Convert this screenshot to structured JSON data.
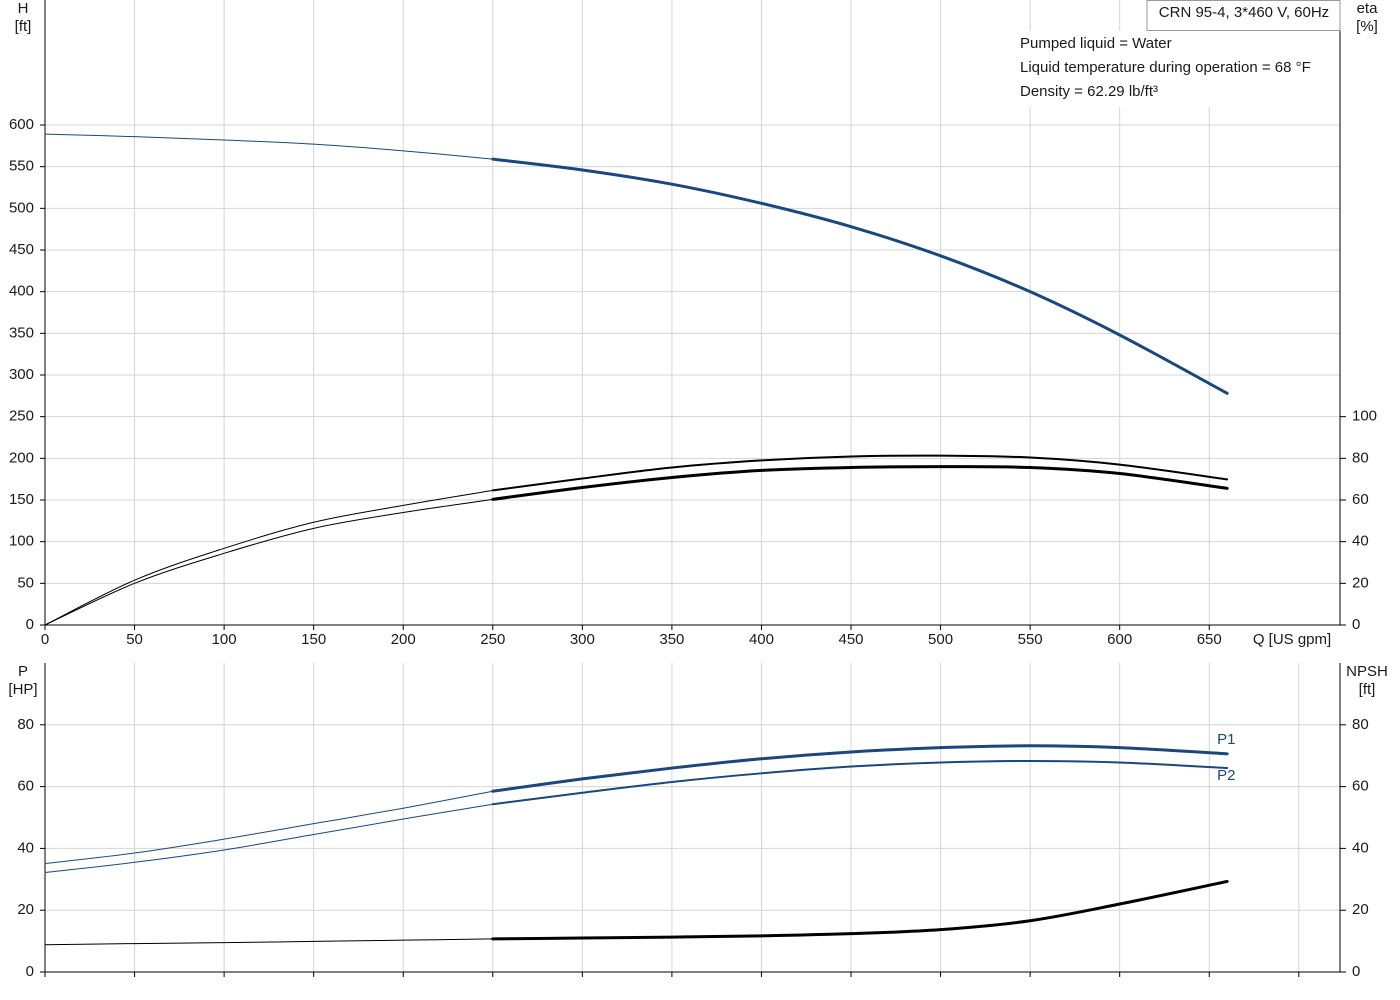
{
  "chart_data": [
    {
      "type": "line",
      "title": "CRN 95-4, 3*460 V, 60Hz",
      "annotations": [
        "Pumped liquid = Water",
        "Liquid temperature during operation = 68 °F",
        "Density = 62.29 lb/ft³"
      ],
      "xlabel": "Q [US gpm]",
      "ylabel": "H",
      "yunit": "[ft]",
      "y2label": "eta",
      "y2unit": "[%]",
      "x": [
        0,
        50,
        100,
        150,
        200,
        250,
        300,
        350,
        400,
        450,
        500,
        550,
        600,
        660
      ],
      "xlim": [
        0,
        723
      ],
      "xticks": [
        0,
        50,
        100,
        150,
        200,
        250,
        300,
        350,
        400,
        450,
        500,
        550,
        600,
        650
      ],
      "show_xtick_labels": true,
      "ylim": [
        0,
        750
      ],
      "yticks": [
        0,
        50,
        100,
        150,
        200,
        250,
        300,
        350,
        400,
        450,
        500,
        550,
        600
      ],
      "y2lim": [
        0,
        300
      ],
      "y2ticks": [
        0,
        20,
        40,
        60,
        80,
        100
      ],
      "grid": true,
      "operating_range": [
        250,
        660
      ],
      "series": [
        {
          "color": "#19477e",
          "weight": "heavy",
          "values": [
            589,
            586,
            582,
            577,
            569,
            559,
            546,
            529,
            506,
            478,
            443,
            400,
            348,
            278
          ]
        },
        {
          "axis": "y2",
          "color": "#000000",
          "weight": "medium",
          "values": [
            0,
            21.5,
            36.8,
            49.3,
            57.4,
            64.6,
            70.3,
            75.6,
            79,
            80.9,
            81.3,
            80.4,
            77,
            69.9
          ]
        },
        {
          "axis": "y2",
          "color": "#000000",
          "weight": "heavy",
          "values": [
            0,
            20,
            34.4,
            46.4,
            54,
            60.3,
            66,
            70.8,
            74.2,
            75.6,
            76,
            75.6,
            72.7,
            65.6
          ]
        }
      ]
    },
    {
      "type": "line",
      "ylabel": "P",
      "yunit": "[HP]",
      "y2label": "NPSH",
      "y2unit": "[ft]",
      "x": [
        0,
        50,
        100,
        150,
        200,
        250,
        300,
        350,
        400,
        450,
        500,
        550,
        600,
        660
      ],
      "xlim": [
        0,
        723
      ],
      "xticks": [
        0,
        50,
        100,
        150,
        200,
        250,
        300,
        350,
        400,
        450,
        500,
        550,
        600,
        650,
        700
      ],
      "show_xtick_labels": false,
      "ylim": [
        0,
        100
      ],
      "yticks": [
        0,
        20,
        40,
        60,
        80
      ],
      "y2lim": [
        0,
        100
      ],
      "y2ticks": [
        0,
        20,
        40,
        60,
        80
      ],
      "grid": true,
      "operating_range": [
        250,
        660
      ],
      "series": [
        {
          "name": "P1",
          "color": "#19477e",
          "weight": "heavy",
          "label_side": "above",
          "values": [
            35.1,
            38.5,
            43,
            48,
            53,
            58.5,
            62.5,
            66,
            69,
            71.2,
            72.6,
            73.2,
            72.6,
            70.6
          ]
        },
        {
          "name": "P2",
          "color": "#19477e",
          "weight": "medium",
          "label_side": "below",
          "values": [
            32.2,
            35.5,
            39.5,
            44.5,
            49.5,
            54.3,
            58,
            61.5,
            64.3,
            66.5,
            67.8,
            68.3,
            67.8,
            66
          ]
        },
        {
          "axis": "y2",
          "color": "#000000",
          "weight": "heavy",
          "values": [
            8.8,
            9.2,
            9.5,
            9.9,
            10.3,
            10.7,
            11,
            11.3,
            11.7,
            12.4,
            13.7,
            16.6,
            22,
            29.3
          ]
        }
      ]
    }
  ]
}
